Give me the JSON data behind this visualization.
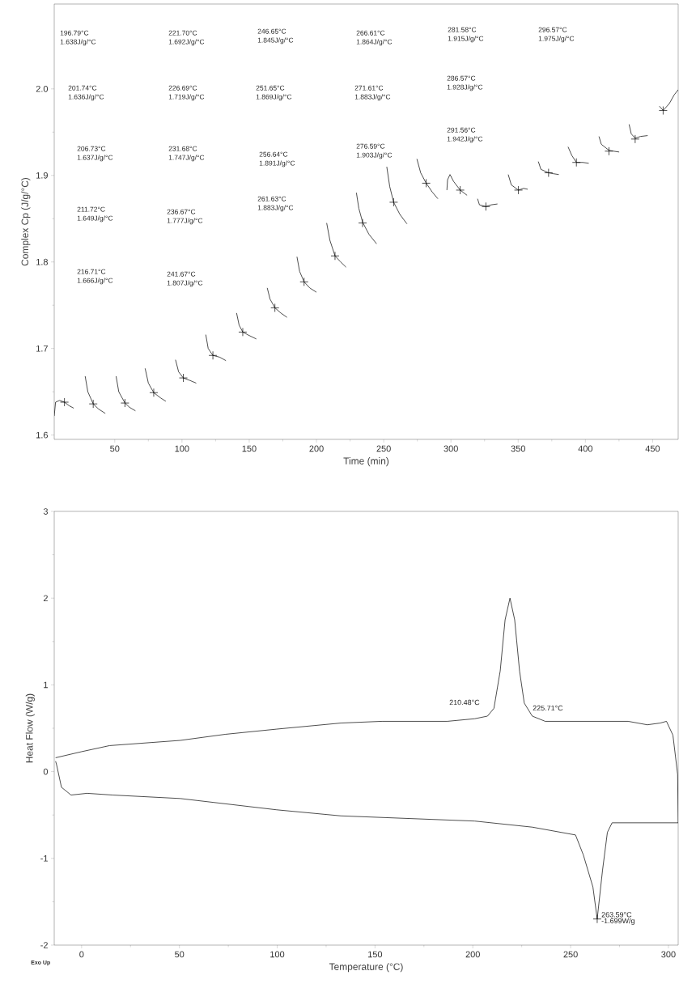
{
  "chart_data": [
    {
      "type": "line",
      "xlabel": "Time (min)",
      "ylabel": "Complex Cp (J/g/°C)",
      "xlim": [
        5,
        469
      ],
      "ylim": [
        1.595,
        2.098
      ],
      "xticks": [
        50,
        100,
        150,
        200,
        250,
        300,
        350,
        400,
        450
      ],
      "yticks": [
        1.6,
        1.7,
        1.8,
        1.9,
        {
          "value": 2.0,
          "label": "2.0"
        }
      ],
      "grid": false,
      "series": [
        {
          "color": "#000000",
          "x": [
            5,
            6,
            9,
            12.6,
            16,
            19.5,
            22.5,
            28,
            30,
            34,
            38,
            43,
            46,
            51,
            53,
            57.6,
            61,
            65.4,
            68.4,
            72.6,
            75,
            79,
            84,
            88,
            91,
            95.2,
            97.5,
            101,
            106,
            110.6,
            113.6,
            117.7,
            119.5,
            123,
            128,
            132.7,
            135.7,
            140.6,
            142.5,
            145.2,
            150,
            155.3,
            158.3,
            163.4,
            165.5,
            169.1,
            173.5,
            178.1,
            181.1,
            185.5,
            187.5,
            190.8,
            195,
            200,
            203,
            207.6,
            210,
            213.8,
            218,
            222,
            225,
            229.7,
            231.5,
            234.3,
            239,
            244.7,
            247.7,
            252.3,
            254.5,
            257.4,
            262,
            267.3,
            270.3,
            274.7,
            277.5,
            281.6,
            286,
            290.3,
            293.3,
            297,
            297.5,
            299.3,
            302,
            306.9,
            312,
            315,
            319.8,
            321.2,
            326,
            330,
            334.6,
            337.6,
            342.6,
            344.9,
            350.2,
            354,
            357.1,
            360.1,
            365,
            366.9,
            372.6,
            376,
            380.2,
            383.2,
            387.1,
            389.9,
            393.3,
            398,
            402.5,
            405.5,
            410.1,
            411.8,
            417.5,
            421,
            425.1,
            428.1,
            432.5,
            434.1,
            437,
            441,
            446.3,
            449.3,
            455,
            457.8,
            462.4,
            466,
            469
          ],
          "values": [
            1.622,
            1.638,
            1.64,
            1.638,
            1.634,
            1.631,
            null,
            1.668,
            1.65,
            1.636,
            1.63,
            1.625,
            null,
            1.668,
            1.65,
            1.637,
            1.632,
            1.628,
            null,
            1.677,
            1.66,
            1.649,
            1.643,
            1.639,
            null,
            1.687,
            1.673,
            1.666,
            1.663,
            1.66,
            null,
            1.716,
            1.7,
            1.692,
            1.69,
            1.686,
            null,
            1.741,
            1.727,
            1.719,
            1.715,
            1.711,
            null,
            1.77,
            1.757,
            1.747,
            1.741,
            1.736,
            null,
            1.806,
            1.789,
            1.777,
            1.77,
            1.765,
            null,
            1.845,
            1.825,
            1.807,
            1.8,
            1.794,
            null,
            1.88,
            1.862,
            1.846,
            1.832,
            1.821,
            null,
            1.91,
            1.887,
            1.869,
            1.855,
            1.844,
            null,
            1.919,
            1.903,
            1.891,
            1.881,
            1.873,
            null,
            1.883,
            1.895,
            1.901,
            1.893,
            1.883,
            1.877,
            null,
            1.873,
            1.866,
            1.864,
            1.866,
            1.867,
            null,
            1.901,
            1.889,
            1.883,
            1.885,
            1.884,
            null,
            1.916,
            1.907,
            1.903,
            1.902,
            1.901,
            null,
            1.933,
            1.923,
            1.915,
            1.915,
            1.914,
            null,
            1.945,
            1.936,
            1.929,
            1.928,
            1.927,
            null,
            1.959,
            1.948,
            1.943,
            1.945,
            1.946,
            null,
            1.98,
            1.975,
            1.983,
            1.993,
            1.999
          ]
        },
        {
          "type": "scatter",
          "marker": "cross",
          "color": "#000000",
          "x": [
            12.6,
            34,
            57.6,
            79,
            101,
            123,
            145.2,
            169.1,
            190.8,
            213.8,
            234.3,
            257.4,
            281.6,
            306.9,
            326,
            350.2,
            372.6,
            393.3,
            417.5,
            437,
            457.8
          ],
          "values": [
            1.638,
            1.636,
            1.637,
            1.649,
            1.666,
            1.692,
            1.719,
            1.747,
            1.777,
            1.807,
            1.845,
            1.869,
            1.891,
            1.883,
            1.864,
            1.883,
            1.903,
            1.915,
            1.928,
            1.942,
            1.975
          ]
        }
      ],
      "annotations": [
        "196.79°C",
        "1.638J/g/°C",
        "201.74°C",
        "1.636J/g/°C",
        "206.73°C",
        "1.637J/g/°C",
        "211.72°C",
        "1.649J/g/°C",
        "216.71°C",
        "1.666J/g/°C",
        "221.70°C",
        "1.692J/g/°C",
        "226.69°C",
        "1.719J/g/°C",
        "231.68°C",
        "1.747J/g/°C",
        "236.67°C",
        "1.777J/g/°C",
        "241.67°C",
        "1.807J/g/°C",
        "246.65°C",
        "1.845J/g/°C",
        "251.65°C",
        "1.869J/g/°C",
        "256.64°C",
        "1.891J/g/°C",
        "261.63°C",
        "1.883J/g/°C",
        "266.61°C",
        "1.864J/g/°C",
        "271.61°C",
        "1.883J/g/°C",
        "276.59°C",
        "1.903J/g/°C",
        "281.58°C",
        "1.915J/g/°C",
        "286.57°C",
        "1.928J/g/°C",
        "291.56°C",
        "1.942J/g/°C",
        "296.57°C",
        "1.975J/g/°C"
      ]
    },
    {
      "type": "line",
      "xlabel": "Temperature (°C)",
      "ylabel": "Heat Flow (W/g)",
      "xlim": [
        -14,
        305
      ],
      "ylim": [
        -2,
        3
      ],
      "xticks": [
        0,
        50,
        100,
        150,
        200,
        250,
        300
      ],
      "yticks": [
        -2,
        -1,
        0,
        1,
        2,
        3
      ],
      "grid": false,
      "series": [
        {
          "color": "#000000",
          "x": [
            -13.3,
            0,
            14.3,
            50.4,
            73.4,
            99.7,
            132.5,
            153.6,
            176,
            187,
            201,
            207.5,
            210.8,
            214,
            216.5,
            219,
            221.4,
            223.9,
            226.3,
            230.4,
            237,
            279.4,
            289.2,
            295.8,
            299,
            302.3,
            304.7,
            305
          ],
          "values": [
            0.16,
            0.23,
            0.3,
            0.36,
            0.43,
            0.49,
            0.56,
            0.58,
            0.58,
            0.58,
            0.61,
            0.64,
            0.73,
            1.16,
            1.75,
            2.0,
            1.75,
            1.16,
            0.79,
            0.64,
            0.58,
            0.58,
            0.54,
            0.56,
            0.58,
            0.42,
            -0.03,
            -0.59
          ]
        },
        {
          "color": "#000000",
          "x": [
            305,
            271.2,
            268.8,
            266.3,
            263.59,
            261.4,
            256.5,
            252.5,
            250,
            230.4,
            201,
            132.5,
            99.7,
            50.4,
            15.9,
            2.8,
            -5.4,
            -10.3,
            -12.8,
            -13.3
          ],
          "values": [
            -0.59,
            -0.59,
            -0.7,
            -1.14,
            -1.699,
            -1.33,
            -0.96,
            -0.73,
            -0.72,
            -0.64,
            -0.57,
            -0.51,
            -0.44,
            -0.31,
            -0.27,
            -0.25,
            -0.27,
            -0.18,
            0.08,
            0.12
          ]
        },
        {
          "type": "scatter",
          "marker": "cross",
          "color": "#000000",
          "x": [
            263.59
          ],
          "values": [
            -1.699
          ]
        }
      ],
      "annotations": [
        "Exo Up",
        "210.48°C",
        "225.71°C",
        {
          "text": "263.59°C",
          "x": 263.59,
          "y": -1.699
        },
        {
          "text": "-1.699W/g",
          "x": 263.59,
          "y": -1.699
        }
      ]
    }
  ]
}
